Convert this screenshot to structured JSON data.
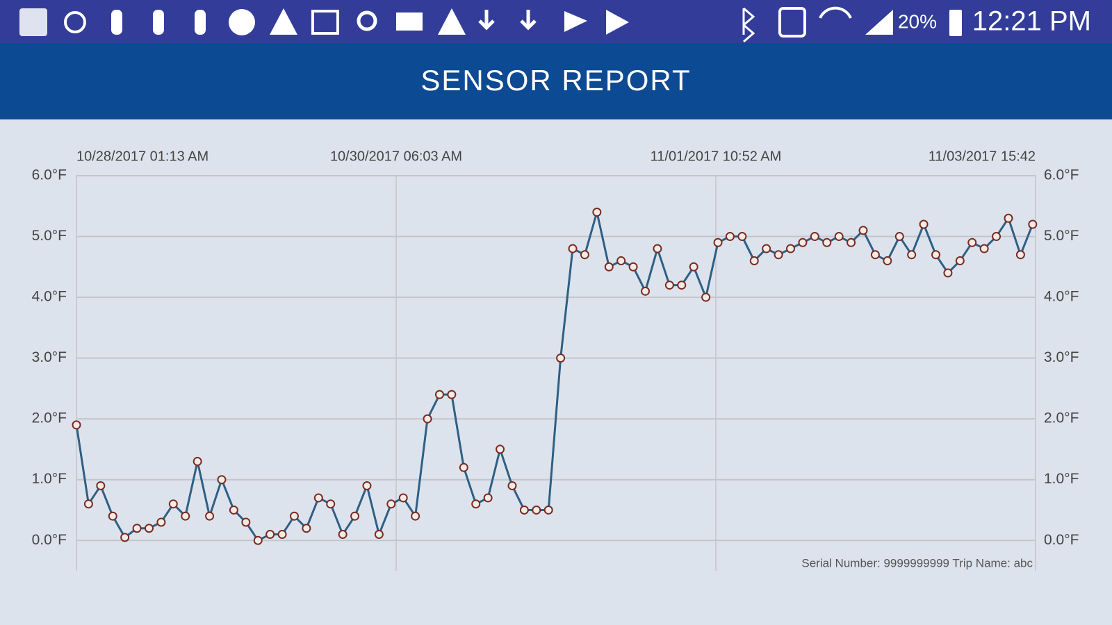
{
  "status_bar": {
    "battery": "20%",
    "time": "12:21 PM"
  },
  "header": {
    "title": "SENSOR REPORT"
  },
  "chart_data": {
    "type": "line",
    "x": [
      0,
      2,
      4,
      6,
      8,
      10,
      12,
      14,
      16,
      18,
      20,
      22,
      24,
      26,
      28,
      30,
      32,
      34,
      36,
      38,
      40,
      42,
      44,
      46,
      48,
      50,
      52,
      54,
      56,
      58,
      60,
      62,
      64,
      66,
      68,
      70,
      72,
      74,
      76,
      78,
      80,
      82,
      84,
      86,
      88,
      90,
      92,
      94,
      96,
      98,
      100,
      102,
      104,
      106,
      108,
      110,
      112,
      114,
      116,
      118,
      120,
      122,
      124,
      126,
      128,
      130,
      132,
      134,
      136,
      138,
      140,
      142,
      144,
      146,
      148,
      150,
      152,
      154,
      156,
      158
    ],
    "values": [
      1.9,
      0.6,
      0.9,
      0.4,
      0.05,
      0.2,
      0.2,
      0.3,
      0.6,
      0.4,
      1.3,
      0.4,
      1.0,
      0.5,
      0.3,
      0.0,
      0.1,
      0.1,
      0.4,
      0.2,
      0.7,
      0.6,
      0.1,
      0.4,
      0.9,
      0.1,
      0.6,
      0.7,
      0.4,
      2.0,
      2.4,
      2.4,
      1.2,
      0.6,
      0.7,
      1.5,
      0.9,
      0.5,
      0.5,
      0.5,
      3.0,
      4.8,
      4.7,
      5.4,
      4.5,
      4.6,
      4.5,
      4.1,
      4.8,
      4.2,
      4.2,
      4.5,
      4.0,
      4.9,
      5.0,
      5.0,
      4.6,
      4.8,
      4.7,
      4.8,
      4.9,
      5.0,
      4.9,
      5.0,
      4.9,
      5.1,
      4.7,
      4.6,
      5.0,
      4.7,
      5.2,
      4.7,
      4.4,
      4.6,
      4.9,
      4.8,
      5.0,
      5.3,
      4.7,
      5.2
    ],
    "color": "#2e5f86",
    "marker_color": "#7a2a22",
    "xlim": [
      0,
      158.48
    ],
    "xticks": [
      {
        "value": 0,
        "label": "10/28/2017 01:13 AM"
      },
      {
        "value": 52.83,
        "label": "10/30/2017 06:03 AM"
      },
      {
        "value": 105.65,
        "label": "11/01/2017 10:52 AM"
      },
      {
        "value": 158.48,
        "label": "11/03/2017 15:42"
      }
    ],
    "ylim": [
      -0.5,
      6.0
    ],
    "yticks": [
      {
        "value": 0,
        "label": "0.0°F"
      },
      {
        "value": 1,
        "label": "1.0°F"
      },
      {
        "value": 2,
        "label": "2.0°F"
      },
      {
        "value": 3,
        "label": "3.0°F"
      },
      {
        "value": 4,
        "label": "4.0°F"
      },
      {
        "value": 5,
        "label": "5.0°F"
      },
      {
        "value": 6,
        "label": "6.0°F"
      }
    ],
    "grid": true,
    "footnote": "Serial Number: 9999999999 Trip Name: abc"
  }
}
